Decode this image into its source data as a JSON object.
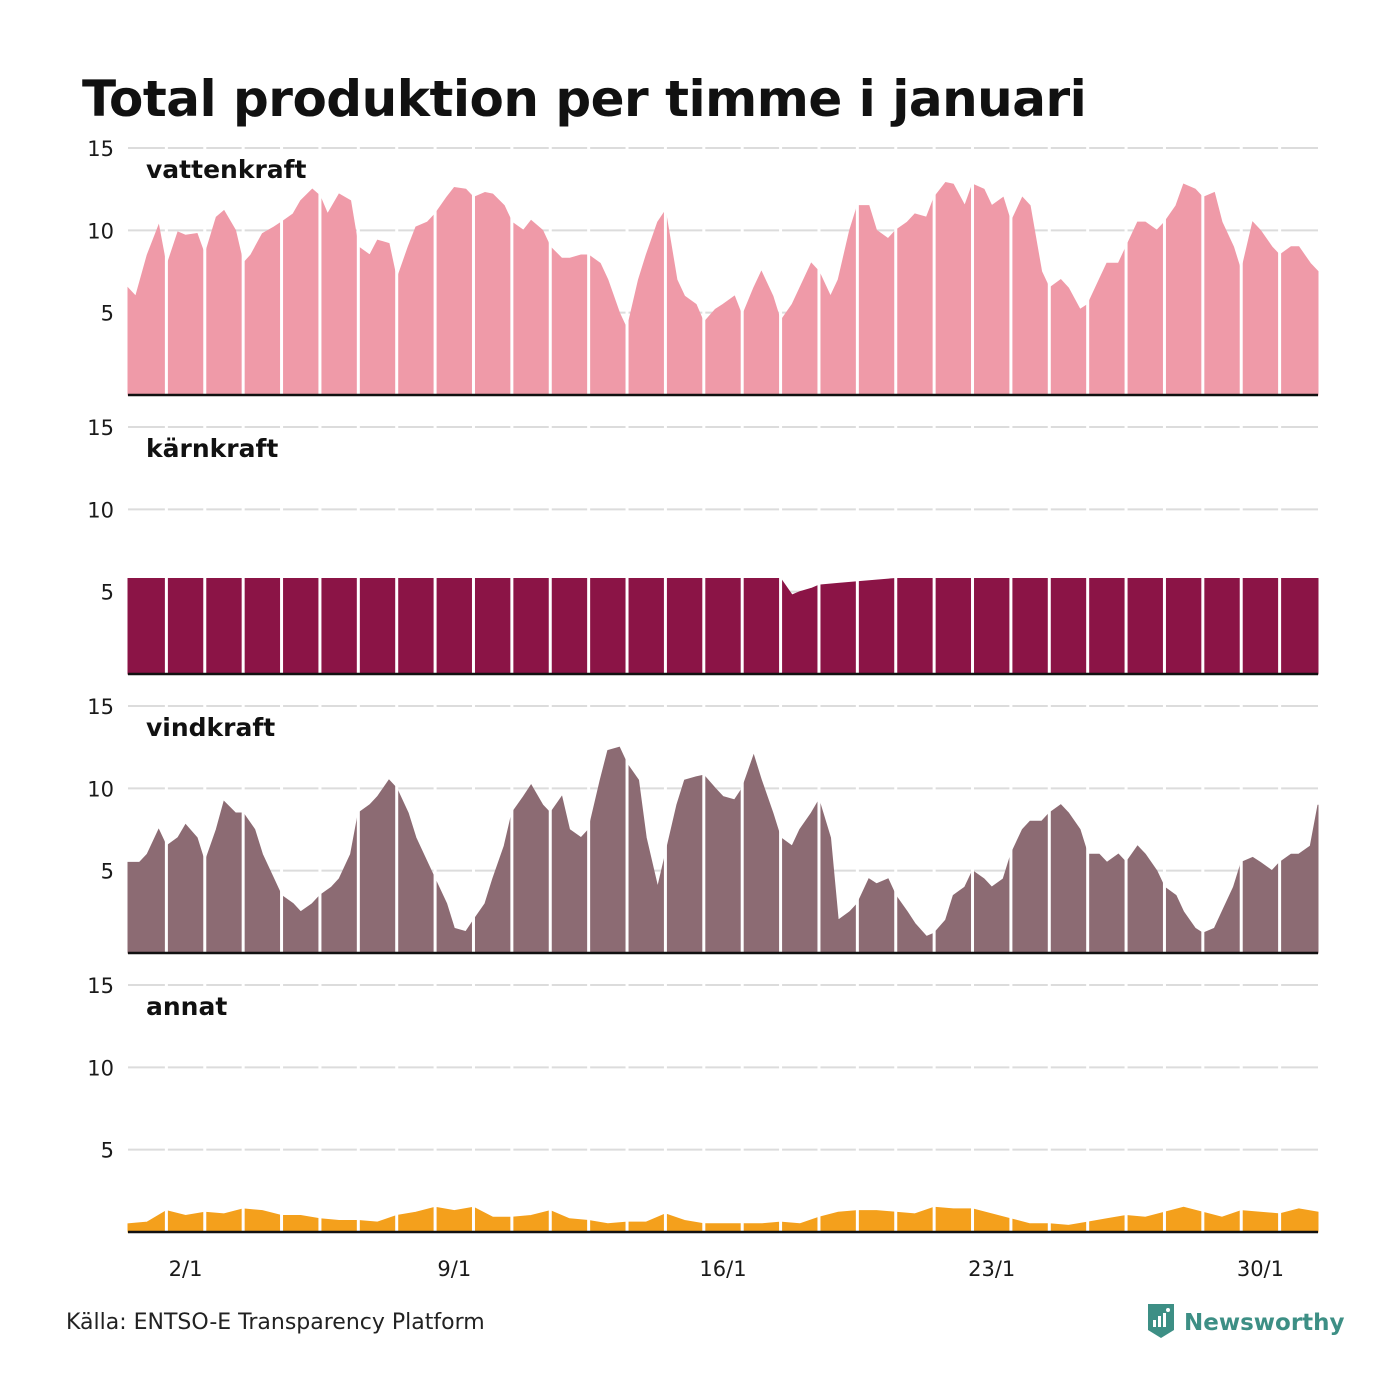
{
  "title": "Total produktion per timme i januari",
  "source": "Källa: ENTSO-E Transparency Platform",
  "brand": {
    "name": "Newsworthy",
    "color": "#3d8f85",
    "icon": "newsworthy-logo-icon"
  },
  "chart_data": {
    "type": "area",
    "layout": "small-multiples",
    "ylim": [
      0,
      15
    ],
    "yticks": [
      5,
      10,
      15
    ],
    "grid": true,
    "x_ticks": [
      "2/1",
      "9/1",
      "16/1",
      "23/1",
      "30/1"
    ],
    "x_tick_days": [
      2,
      9,
      16,
      23,
      30
    ],
    "x_domain_days": [
      1,
      32
    ],
    "series": [
      {
        "name": "vattenkraft",
        "color": "#ef9aa8",
        "x": [
          1.0,
          1.2,
          1.5,
          1.8,
          2.0,
          2.3,
          2.5,
          2.8,
          3.0,
          3.3,
          3.5,
          3.8,
          4.0,
          4.2,
          4.5,
          4.8,
          5.0,
          5.3,
          5.5,
          5.8,
          6.0,
          6.2,
          6.5,
          6.8,
          7.0,
          7.3,
          7.5,
          7.8,
          8.0,
          8.3,
          8.5,
          8.8,
          9.0,
          9.3,
          9.5,
          9.8,
          10.0,
          10.3,
          10.5,
          10.8,
          11.0,
          11.3,
          11.5,
          11.8,
          12.0,
          12.3,
          12.5,
          12.8,
          13.0,
          13.3,
          13.5,
          13.8,
          14.0,
          14.3,
          14.5,
          14.8,
          15.0,
          15.3,
          15.5,
          15.8,
          16.0,
          16.3,
          16.5,
          16.8,
          17.0,
          17.3,
          17.5,
          17.8,
          18.0,
          18.3,
          18.5,
          18.8,
          19.0,
          19.3,
          19.5,
          19.8,
          20.0,
          20.3,
          20.5,
          20.8,
          21.0,
          21.3,
          21.5,
          21.8,
          22.0,
          22.3,
          22.5,
          22.8,
          23.0,
          23.3,
          23.5,
          23.8,
          24.0,
          24.3,
          24.5,
          24.8,
          25.0,
          25.3,
          25.5,
          25.8,
          26.0,
          26.3,
          26.5,
          26.8,
          27.0,
          27.3,
          27.5,
          27.8,
          28.0,
          28.3,
          28.5,
          28.8,
          29.0,
          29.3,
          29.5,
          29.8,
          30.0,
          30.3,
          30.5,
          30.8,
          31.0,
          31.3,
          31.5,
          31.8,
          32.0
        ],
        "values": [
          6.5,
          6.0,
          8.5,
          10.3,
          7.8,
          9.9,
          9.7,
          9.8,
          8.5,
          10.8,
          11.2,
          10.0,
          8.0,
          8.5,
          9.8,
          10.2,
          10.5,
          11.0,
          11.8,
          12.5,
          12.1,
          11.0,
          12.2,
          11.8,
          9.0,
          8.5,
          9.4,
          9.2,
          7.0,
          9.0,
          10.2,
          10.5,
          11.0,
          12.0,
          12.6,
          12.5,
          12.0,
          12.3,
          12.2,
          11.5,
          10.5,
          10.0,
          10.6,
          10.0,
          9.0,
          8.3,
          8.3,
          8.5,
          8.5,
          8.0,
          7.0,
          5.0,
          4.0,
          7.0,
          8.5,
          10.5,
          11.2,
          7.0,
          6.0,
          5.5,
          4.4,
          5.2,
          5.5,
          6.0,
          4.8,
          6.5,
          7.5,
          6.0,
          4.5,
          5.5,
          6.5,
          8.0,
          7.5,
          6.0,
          7.0,
          10.0,
          11.5,
          11.5,
          10.0,
          9.5,
          10.0,
          10.5,
          11.0,
          10.8,
          12.0,
          12.9,
          12.8,
          11.5,
          12.8,
          12.5,
          11.5,
          12.0,
          10.5,
          12.0,
          11.5,
          7.5,
          6.5,
          7.0,
          6.5,
          5.2,
          5.5,
          7.0,
          8.0,
          8.0,
          9.0,
          10.5,
          10.5,
          10.0,
          10.5,
          11.5,
          12.8,
          12.5,
          12.0,
          12.3,
          10.5,
          9.0,
          7.5,
          10.5,
          10.0,
          9.0,
          8.5,
          9.0,
          9.0,
          8.0,
          7.5
        ]
      },
      {
        "name": "kärnkraft",
        "color": "#8b1446",
        "x": [
          1.0,
          2.0,
          3.0,
          4.0,
          5.0,
          6.0,
          7.0,
          8.0,
          9.0,
          10.0,
          11.0,
          12.0,
          13.0,
          14.0,
          15.0,
          16.0,
          17.0,
          18.0,
          18.3,
          18.5,
          18.8,
          19.0,
          19.5,
          20.0,
          20.5,
          21.0,
          22.0,
          23.0,
          24.0,
          25.0,
          26.0,
          27.0,
          28.0,
          29.0,
          30.0,
          31.0,
          32.0
        ],
        "values": [
          5.8,
          5.8,
          5.8,
          5.8,
          5.8,
          5.8,
          5.8,
          5.8,
          5.8,
          5.8,
          5.8,
          5.8,
          5.8,
          5.8,
          5.8,
          5.8,
          5.8,
          5.8,
          4.8,
          5.0,
          5.2,
          5.4,
          5.5,
          5.6,
          5.7,
          5.8,
          5.8,
          5.8,
          5.8,
          5.8,
          5.8,
          5.8,
          5.8,
          5.8,
          5.8,
          5.8,
          5.8
        ]
      },
      {
        "name": "vindkraft",
        "color": "#8c6b73",
        "x": [
          1.0,
          1.3,
          1.5,
          1.8,
          2.0,
          2.3,
          2.5,
          2.8,
          3.0,
          3.3,
          3.5,
          3.8,
          4.0,
          4.3,
          4.5,
          4.8,
          5.0,
          5.3,
          5.5,
          5.8,
          6.0,
          6.3,
          6.5,
          6.8,
          7.0,
          7.3,
          7.5,
          7.8,
          8.0,
          8.3,
          8.5,
          8.8,
          9.0,
          9.3,
          9.5,
          9.8,
          10.0,
          10.3,
          10.5,
          10.8,
          11.0,
          11.3,
          11.5,
          11.8,
          12.0,
          12.3,
          12.5,
          12.8,
          13.0,
          13.3,
          13.5,
          13.8,
          14.0,
          14.3,
          14.5,
          14.8,
          15.0,
          15.3,
          15.5,
          15.8,
          16.0,
          16.3,
          16.5,
          16.8,
          17.0,
          17.3,
          17.5,
          17.8,
          18.0,
          18.3,
          18.5,
          18.8,
          19.0,
          19.3,
          19.5,
          19.8,
          20.0,
          20.3,
          20.5,
          20.8,
          21.0,
          21.3,
          21.5,
          21.8,
          22.0,
          22.3,
          22.5,
          22.8,
          23.0,
          23.3,
          23.5,
          23.8,
          24.0,
          24.3,
          24.5,
          24.8,
          25.0,
          25.3,
          25.5,
          25.8,
          26.0,
          26.3,
          26.5,
          26.8,
          27.0,
          27.3,
          27.5,
          27.8,
          28.0,
          28.3,
          28.5,
          28.8,
          29.0,
          29.3,
          29.5,
          29.8,
          30.0,
          30.3,
          30.5,
          30.8,
          31.0,
          31.3,
          31.5,
          31.8,
          32.0
        ],
        "values": [
          5.5,
          5.5,
          6.0,
          7.5,
          6.5,
          7.0,
          7.8,
          7.0,
          5.5,
          7.5,
          9.2,
          8.5,
          8.5,
          7.5,
          6.0,
          4.5,
          3.5,
          3.0,
          2.5,
          3.0,
          3.5,
          4.0,
          4.5,
          6.0,
          8.5,
          9.0,
          9.5,
          10.5,
          10.0,
          8.5,
          7.0,
          5.5,
          4.5,
          3.0,
          1.5,
          1.3,
          2.0,
          3.0,
          4.5,
          6.5,
          8.5,
          9.5,
          10.2,
          9.0,
          8.5,
          9.5,
          7.5,
          7.0,
          7.5,
          10.5,
          12.3,
          12.5,
          11.5,
          10.5,
          7.0,
          4.0,
          6.0,
          9.0,
          10.5,
          10.7,
          10.8,
          10.0,
          9.5,
          9.3,
          10.0,
          12.0,
          10.5,
          8.5,
          7.0,
          6.5,
          7.5,
          8.5,
          9.3,
          7.0,
          2.0,
          2.5,
          3.0,
          4.5,
          4.2,
          4.5,
          3.5,
          2.5,
          1.8,
          1.0,
          1.2,
          2.0,
          3.5,
          4.0,
          5.0,
          4.5,
          4.0,
          4.5,
          6.0,
          7.5,
          8.0,
          8.0,
          8.5,
          9.0,
          8.5,
          7.5,
          6.0,
          6.0,
          5.5,
          6.0,
          5.5,
          6.5,
          6.0,
          5.0,
          4.0,
          3.5,
          2.5,
          1.5,
          1.2,
          1.5,
          2.5,
          4.0,
          5.5,
          5.8,
          5.5,
          5.0,
          5.5,
          6.0,
          6.0,
          6.5,
          9.0
        ]
      },
      {
        "name": "annat",
        "color": "#f4a01c",
        "x": [
          1.0,
          1.5,
          2.0,
          2.5,
          3.0,
          3.5,
          4.0,
          4.5,
          5.0,
          5.5,
          6.0,
          6.5,
          7.0,
          7.5,
          8.0,
          8.5,
          9.0,
          9.5,
          10.0,
          10.5,
          11.0,
          11.5,
          12.0,
          12.5,
          13.0,
          13.5,
          14.0,
          14.5,
          15.0,
          15.5,
          16.0,
          16.5,
          17.0,
          17.5,
          18.0,
          18.5,
          19.0,
          19.5,
          20.0,
          20.5,
          21.0,
          21.5,
          22.0,
          22.5,
          23.0,
          23.5,
          24.0,
          24.5,
          25.0,
          25.5,
          26.0,
          26.5,
          27.0,
          27.5,
          28.0,
          28.5,
          29.0,
          29.5,
          30.0,
          30.5,
          31.0,
          31.5,
          32.0
        ],
        "values": [
          0.5,
          0.6,
          1.3,
          1.0,
          1.2,
          1.1,
          1.4,
          1.3,
          1.0,
          1.0,
          0.8,
          0.7,
          0.7,
          0.6,
          1.0,
          1.2,
          1.5,
          1.3,
          1.5,
          0.9,
          0.9,
          1.0,
          1.3,
          0.8,
          0.7,
          0.5,
          0.6,
          0.6,
          1.1,
          0.7,
          0.5,
          0.5,
          0.5,
          0.5,
          0.6,
          0.5,
          0.9,
          1.2,
          1.3,
          1.3,
          1.2,
          1.1,
          1.5,
          1.4,
          1.4,
          1.1,
          0.8,
          0.5,
          0.5,
          0.4,
          0.6,
          0.8,
          1.0,
          0.9,
          1.2,
          1.5,
          1.2,
          0.9,
          1.3,
          1.2,
          1.1,
          1.4,
          1.2
        ]
      }
    ]
  }
}
